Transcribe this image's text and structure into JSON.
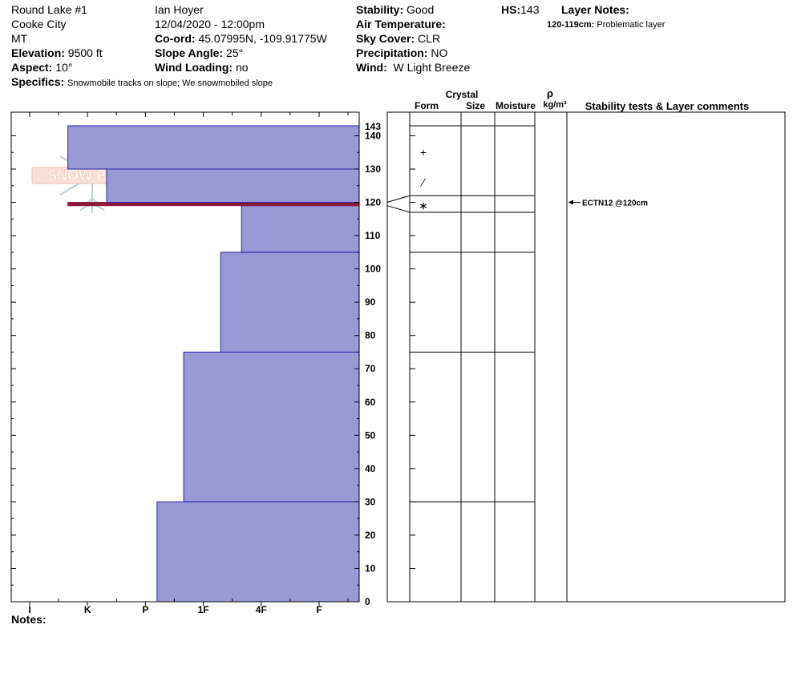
{
  "header": {
    "location": "Round Lake #1",
    "area": "Cooke City",
    "state": "MT",
    "elevation_label": "Elevation:",
    "elevation": "9500 ft",
    "aspect_label": "Aspect:",
    "aspect": "10°",
    "specifics_label": "Specifics:",
    "specifics": "Snowmobile tracks on slope; We snowmobiled slope",
    "observer": "Ian Hoyer",
    "datetime": "12/04/2020 - 12:00pm",
    "coord_label": "Co-ord:",
    "coord": "45.07995N, -109.91775W",
    "slope_label": "Slope Angle:",
    "slope": "25°",
    "wind_loading_label": "Wind Loading:",
    "wind_loading": "no",
    "stability_label": "Stability:",
    "stability": "Good",
    "air_temp_label": "Air Temperature:",
    "air_temp": "",
    "sky_label": "Sky Cover:",
    "sky": "CLR",
    "precip_label": "Precipitation:",
    "precip": "NO",
    "wind_label": "Wind:",
    "wind": "W Light Breeze",
    "hs_label": "HS:",
    "hs": "143",
    "layer_notes_label": "Layer Notes:",
    "layer_note_range": "120-119cm:",
    "layer_note_text": "Problematic layer"
  },
  "logo": {
    "text": "SNOW PILOT"
  },
  "columns": {
    "crystal": "Crystal",
    "form": "Form",
    "size": "Size",
    "moisture": "Moisture",
    "rho": "ρ",
    "density_unit": "kg/m³",
    "stability_comments": "Stability tests & Layer comments"
  },
  "notes_label": "Notes:",
  "chart_data": {
    "type": "bar",
    "orientation": "horizontal",
    "x_categories": [
      "I",
      "K",
      "P",
      "1F",
      "4F",
      "F"
    ],
    "y_ticks": [
      0,
      10,
      20,
      30,
      40,
      50,
      60,
      70,
      80,
      90,
      100,
      110,
      120,
      130,
      140
    ],
    "y_top_label": "143",
    "ylim": [
      0,
      143
    ],
    "layers": [
      {
        "bottom": 0,
        "top": 30,
        "hardness": 2.2
      },
      {
        "bottom": 30,
        "top": 75,
        "hardness": 2.66
      },
      {
        "bottom": 75,
        "top": 105,
        "hardness": 3.3
      },
      {
        "bottom": 105,
        "top": 119,
        "hardness": 3.66
      },
      {
        "bottom": 119,
        "top": 120,
        "hardness": 0.66
      },
      {
        "bottom": 120,
        "top": 130,
        "hardness": 1.33
      },
      {
        "bottom": 130,
        "top": 143,
        "hardness": 0.66
      }
    ],
    "layer_boundaries": [
      143,
      122,
      117,
      105,
      75,
      30
    ],
    "crystal_forms": [
      {
        "depth": 135,
        "symbol": "+"
      },
      {
        "depth": 126,
        "symbol": "⁄"
      },
      {
        "depth": 119,
        "symbol": "∗"
      }
    ],
    "stability_tests": [
      {
        "depth": 120,
        "label": "ECTN12 @120cm"
      }
    ],
    "colors": {
      "fill": "#9999d6",
      "stroke": "#2222aa",
      "weak_layer": "#8b1a3a"
    }
  }
}
